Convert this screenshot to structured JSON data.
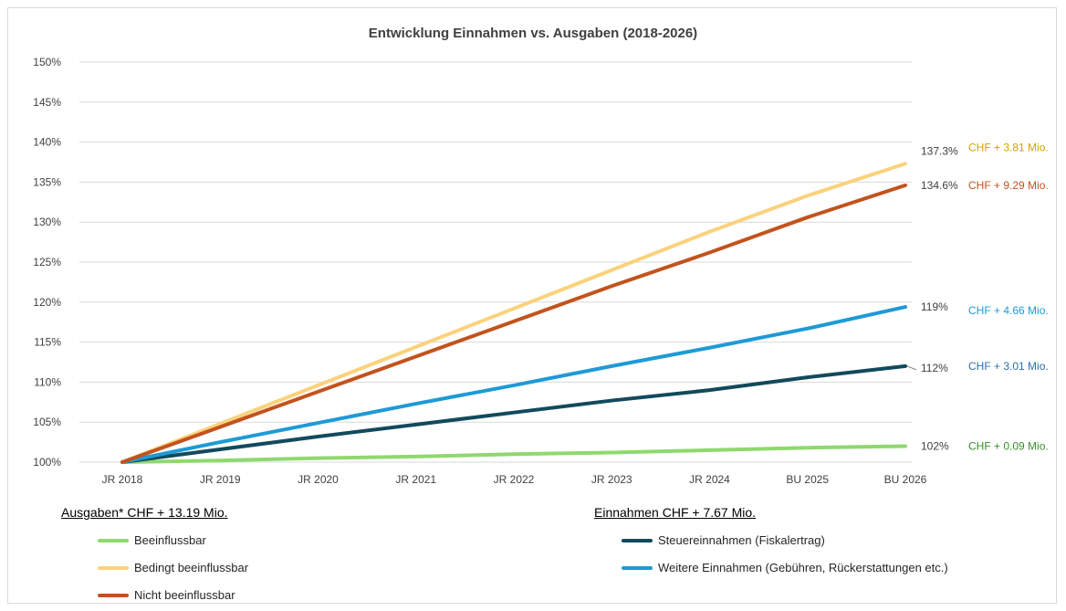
{
  "chart_data": {
    "type": "line",
    "title": "Entwicklung Einnahmen vs. Ausgaben (2018-2026)",
    "categories": [
      "JR 2018",
      "JR 2019",
      "JR 2020",
      "JR 2021",
      "JR 2022",
      "JR 2023",
      "JR 2024",
      "BU 2025",
      "BU 2026"
    ],
    "ylim": [
      100,
      150
    ],
    "yticks": [
      100,
      105,
      110,
      115,
      120,
      125,
      130,
      135,
      140,
      145,
      150
    ],
    "y_tick_suffix": "%",
    "grid": true,
    "series": [
      {
        "name": "Beeinflussbar",
        "color": "#8fd86e",
        "group": "ausgaben",
        "values": [
          100,
          100.2,
          100.5,
          100.7,
          101.0,
          101.2,
          101.5,
          101.8,
          102.0
        ],
        "end_label": "102%",
        "chf_label": "CHF + 0.09 Mio.",
        "chf_color": "#3a8f2a"
      },
      {
        "name": "Bedingt beeinflussbar",
        "color": "#fbd27c",
        "group": "ausgaben",
        "values": [
          100,
          104.8,
          109.6,
          114.4,
          119.2,
          124.0,
          128.8,
          133.3,
          137.3
        ],
        "end_label": "137.3%",
        "chf_label": "CHF + 3.81 Mio.",
        "chf_color": "#d4a100"
      },
      {
        "name": "Nicht beeinflussbar",
        "color": "#c2531e",
        "group": "ausgaben",
        "values": [
          100,
          104.4,
          108.8,
          113.2,
          117.6,
          122.0,
          126.2,
          130.6,
          134.6
        ],
        "end_label": "134.6%",
        "chf_label": "CHF + 9.29 Mio.",
        "chf_color": "#c2531e"
      },
      {
        "name": "Steuereinnahmen (Fiskalertrag)",
        "color": "#124a5c",
        "group": "einnahmen",
        "values": [
          100,
          101.6,
          103.2,
          104.7,
          106.2,
          107.7,
          109.0,
          110.6,
          112.0
        ],
        "end_label": "112%",
        "chf_label": "CHF + 3.01 Mio.",
        "chf_color": "#2c6fb3"
      },
      {
        "name": "Weitere Einnahmen (Gebühren, Rückerstattungen etc.)",
        "color": "#1e9ad6",
        "group": "einnahmen",
        "values": [
          100,
          102.5,
          104.9,
          107.3,
          109.6,
          112.0,
          114.3,
          116.7,
          119.4
        ],
        "end_label": "119%",
        "chf_label": "CHF + 4.66 Mio.",
        "chf_color": "#1e9ad6"
      }
    ]
  },
  "legend": {
    "ausgaben_heading": "Ausgaben* CHF + 13.19 Mio.",
    "einnahmen_heading": "Einnahmen CHF + 7.67 Mio."
  }
}
